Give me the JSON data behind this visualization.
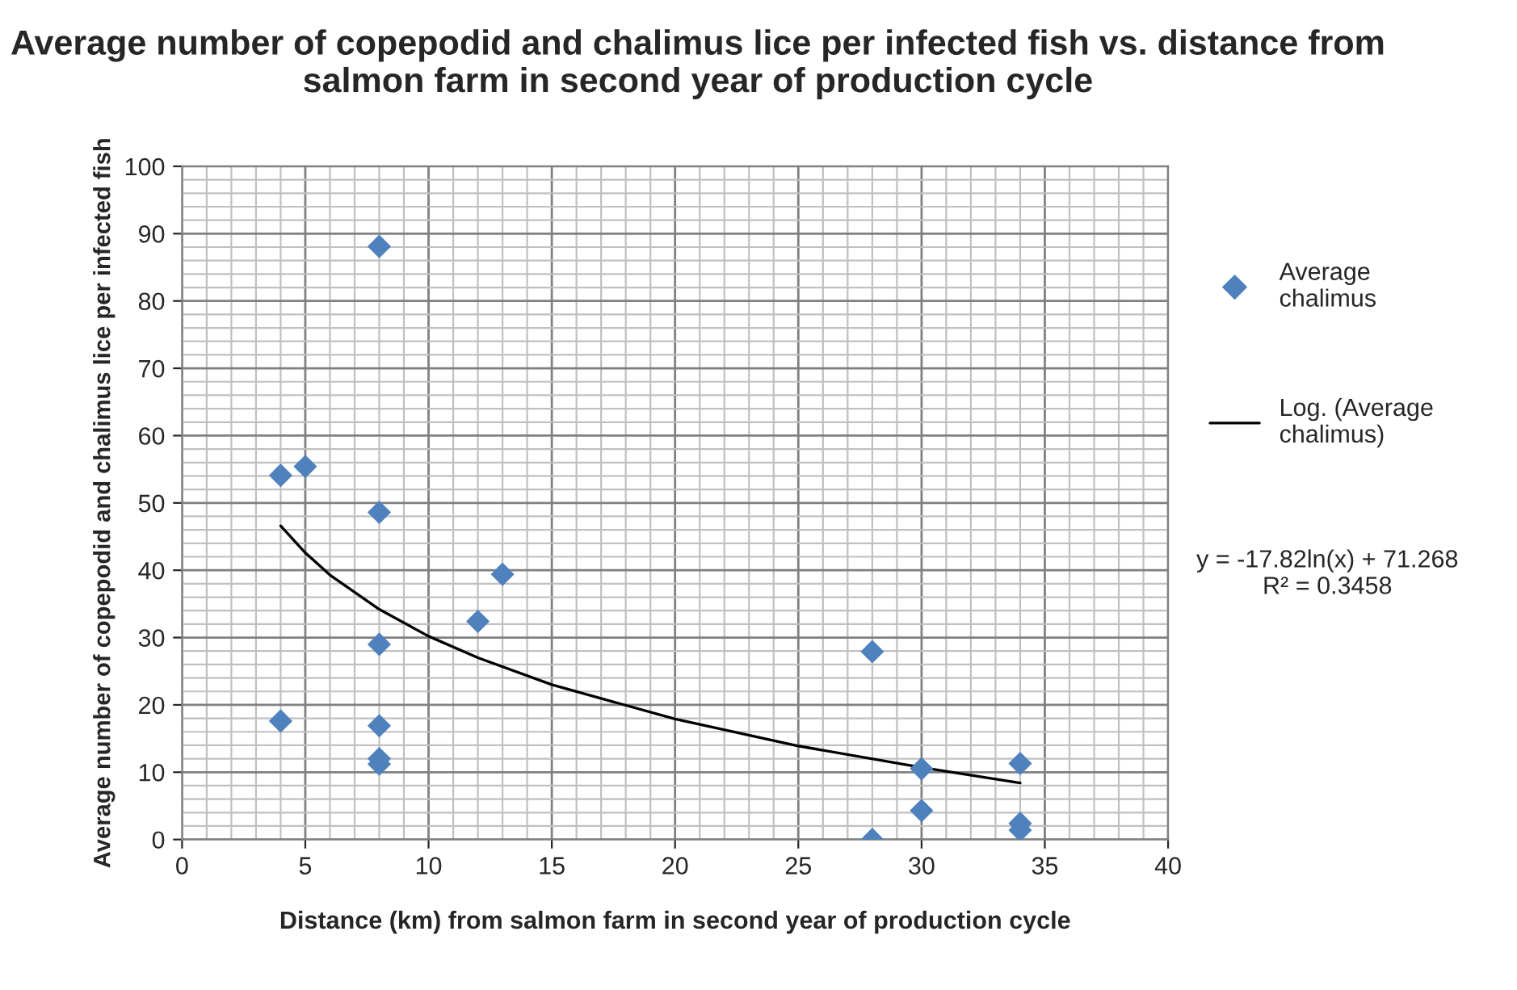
{
  "chart_data": {
    "type": "scatter",
    "title": "Average number of copepodid and chalimus lice per infected fish vs. distance from salmon farm in second year of production cycle",
    "xlabel": "Distance (km) from salmon farm in second year of production cycle",
    "ylabel": "Average number of copepodid and chalimus lice per infected fish",
    "xlim": [
      0,
      40
    ],
    "xticks": [
      0,
      5,
      10,
      15,
      20,
      25,
      30,
      35,
      40
    ],
    "ylim": [
      0,
      100
    ],
    "yticks": [
      0,
      10,
      20,
      30,
      40,
      50,
      60,
      70,
      80,
      90,
      100
    ],
    "grid": true,
    "legend": "right",
    "series": [
      {
        "name": "Average chalimus",
        "marker": "diamond",
        "color": "#4f81bd",
        "x": [
          4,
          5,
          8,
          8,
          12,
          13,
          8,
          4,
          8,
          8,
          8,
          28,
          28,
          30,
          30,
          34,
          34,
          34
        ],
        "values": [
          54.1,
          55.4,
          88.1,
          48.6,
          32.4,
          39.4,
          29.0,
          17.6,
          16.9,
          12.0,
          11.2,
          27.9,
          0,
          10.5,
          4.3,
          11.3,
          2.4,
          1.4
        ]
      },
      {
        "name": "Log. (Average chalimus)",
        "type": "line",
        "marker": "none",
        "color": "#000000",
        "x": [
          4,
          5,
          6,
          8,
          10,
          12,
          15,
          20,
          25,
          30,
          34
        ],
        "values": [
          46.6,
          42.6,
          39.3,
          34.2,
          30.2,
          27.0,
          23.0,
          17.9,
          13.9,
          10.7,
          8.4
        ]
      }
    ],
    "annotations": [
      "y = -17.82ln(x) + 71.268\nR² = 0.3458"
    ]
  }
}
